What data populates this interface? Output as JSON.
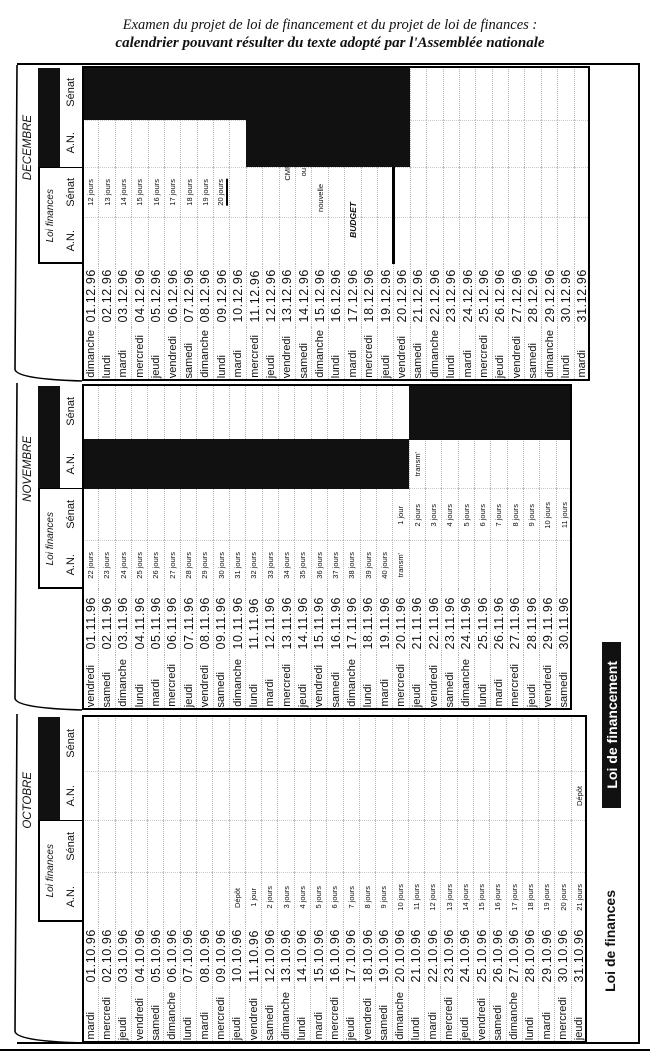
{
  "title": {
    "line1": "Examen du projet de loi de financement et du projet de loi de finances :",
    "line2": "calendrier pouvant résulter du texte adopté par l'Assemblée nationale"
  },
  "column_headers": {
    "loi_finances": "Loi finances",
    "an": "A.N.",
    "senat": "Sénat"
  },
  "legend": {
    "loi_de_finances": "Loi de finances",
    "loi_de_financement": "Loi de financement"
  },
  "colors": {
    "shade": "#111111",
    "grid": "#b8b8b8"
  },
  "months": [
    {
      "name": "OCTOBRE",
      "shaded": [],
      "days": [
        {
          "d": "mardi",
          "dt": "01.10.96"
        },
        {
          "d": "mercredi",
          "dt": "02.10.96"
        },
        {
          "d": "jeudi",
          "dt": "03.10.96"
        },
        {
          "d": "vendredi",
          "dt": "04.10.96"
        },
        {
          "d": "samedi",
          "dt": "05.10.96"
        },
        {
          "d": "dimanche",
          "dt": "06.10.96"
        },
        {
          "d": "lundi",
          "dt": "07.10.96"
        },
        {
          "d": "mardi",
          "dt": "08.10.96"
        },
        {
          "d": "mercredi",
          "dt": "09.10.96"
        },
        {
          "d": "jeudi",
          "dt": "10.10.96",
          "lf_an": "Dépôt"
        },
        {
          "d": "vendredi",
          "dt": "11.10.96",
          "lf_an": "1 jour"
        },
        {
          "d": "samedi",
          "dt": "12.10.96",
          "lf_an": "2 jours"
        },
        {
          "d": "dimanche",
          "dt": "13.10.96",
          "lf_an": "3 jours"
        },
        {
          "d": "lundi",
          "dt": "14.10.96",
          "lf_an": "4 jours"
        },
        {
          "d": "mardi",
          "dt": "15.10.96",
          "lf_an": "5 jours"
        },
        {
          "d": "mercredi",
          "dt": "16.10.96",
          "lf_an": "6 jours"
        },
        {
          "d": "jeudi",
          "dt": "17.10.96",
          "lf_an": "7 jours"
        },
        {
          "d": "vendredi",
          "dt": "18.10.96",
          "lf_an": "8 jours"
        },
        {
          "d": "samedi",
          "dt": "19.10.96",
          "lf_an": "9 jours"
        },
        {
          "d": "dimanche",
          "dt": "20.10.96",
          "lf_an": "10 jours"
        },
        {
          "d": "lundi",
          "dt": "21.10.96",
          "lf_an": "11 jours"
        },
        {
          "d": "mardi",
          "dt": "22.10.96",
          "lf_an": "12 jours"
        },
        {
          "d": "mercredi",
          "dt": "23.10.96",
          "lf_an": "13 jours"
        },
        {
          "d": "jeudi",
          "dt": "24.10.96",
          "lf_an": "14 jours"
        },
        {
          "d": "vendredi",
          "dt": "25.10.96",
          "lf_an": "15 jours"
        },
        {
          "d": "samedi",
          "dt": "26.10.96",
          "lf_an": "16 jours"
        },
        {
          "d": "dimanche",
          "dt": "27.10.96",
          "lf_an": "17 jours"
        },
        {
          "d": "lundi",
          "dt": "28.10.96",
          "lf_an": "18 jours"
        },
        {
          "d": "mardi",
          "dt": "29.10.96",
          "lf_an": "19 jours"
        },
        {
          "d": "mercredi",
          "dt": "30.10.96",
          "lf_an": "20 jours"
        },
        {
          "d": "jeudi",
          "dt": "31.10.96",
          "lf_an": "21 jours",
          "lfss_an": "Dépôt"
        }
      ]
    },
    {
      "name": "NOVEMBRE",
      "shaded": [
        {
          "row": "lfss_an",
          "from_day": 1,
          "to_day": 20
        },
        {
          "row": "lfss_senat",
          "from_day": 21,
          "to_day": 30
        }
      ],
      "days": [
        {
          "d": "vendredi",
          "dt": "01.11.96",
          "lf_an": "22 jours"
        },
        {
          "d": "samedi",
          "dt": "02.11.96",
          "lf_an": "23 jours"
        },
        {
          "d": "dimanche",
          "dt": "03.11.96",
          "lf_an": "24 jours"
        },
        {
          "d": "lundi",
          "dt": "04.11.96",
          "lf_an": "25 jours"
        },
        {
          "d": "mardi",
          "dt": "05.11.96",
          "lf_an": "26 jours"
        },
        {
          "d": "mercredi",
          "dt": "06.11.96",
          "lf_an": "27 jours"
        },
        {
          "d": "jeudi",
          "dt": "07.11.96",
          "lf_an": "28 jours"
        },
        {
          "d": "vendredi",
          "dt": "08.11.96",
          "lf_an": "29 jours"
        },
        {
          "d": "samedi",
          "dt": "09.11.96",
          "lf_an": "30 jours"
        },
        {
          "d": "dimanche",
          "dt": "10.11.96",
          "lf_an": "31 jours"
        },
        {
          "d": "lundi",
          "dt": "11.11.96",
          "lf_an": "32 jours"
        },
        {
          "d": "mardi",
          "dt": "12.11.96",
          "lf_an": "33 jours"
        },
        {
          "d": "mercredi",
          "dt": "13.11.96",
          "lf_an": "34 jours"
        },
        {
          "d": "jeudi",
          "dt": "14.11.96",
          "lf_an": "35 jours"
        },
        {
          "d": "vendredi",
          "dt": "15.11.96",
          "lf_an": "36 jours"
        },
        {
          "d": "samedi",
          "dt": "16.11.96",
          "lf_an": "37 jours"
        },
        {
          "d": "dimanche",
          "dt": "17.11.96",
          "lf_an": "38 jours"
        },
        {
          "d": "lundi",
          "dt": "18.11.96",
          "lf_an": "39 jours"
        },
        {
          "d": "mardi",
          "dt": "19.11.96",
          "lf_an": "40 jours"
        },
        {
          "d": "mercredi",
          "dt": "20.11.96",
          "lf_an": "transm'",
          "lf_senat": "1 jour"
        },
        {
          "d": "jeudi",
          "dt": "21.11.96",
          "lf_senat": "2 jours",
          "lfss_an": "transm'"
        },
        {
          "d": "vendredi",
          "dt": "22.11.96",
          "lf_senat": "3 jours"
        },
        {
          "d": "samedi",
          "dt": "23.11.96",
          "lf_senat": "4 jours"
        },
        {
          "d": "dimanche",
          "dt": "24.11.96",
          "lf_senat": "5 jours"
        },
        {
          "d": "lundi",
          "dt": "25.11.96",
          "lf_senat": "6 jours"
        },
        {
          "d": "mardi",
          "dt": "26.11.96",
          "lf_senat": "7 jours"
        },
        {
          "d": "mercredi",
          "dt": "27.11.96",
          "lf_senat": "8 jours"
        },
        {
          "d": "jeudi",
          "dt": "28.11.96",
          "lf_senat": "9 jours"
        },
        {
          "d": "vendredi",
          "dt": "29.11.96",
          "lf_senat": "10 jours"
        },
        {
          "d": "samedi",
          "dt": "30.11.96",
          "lf_senat": "11 jours"
        }
      ]
    },
    {
      "name": "DECEMBRE",
      "shaded": [
        {
          "row": "lfss_senat",
          "from_day": 1,
          "to_day": 20
        },
        {
          "row": "lfss_an",
          "from_day": 11,
          "to_day": 20
        }
      ],
      "lf_end_marker_after_day": 19,
      "days": [
        {
          "d": "dimanche",
          "dt": "01.12.96",
          "lf_senat": "12 jours"
        },
        {
          "d": "lundi",
          "dt": "02.12.96",
          "lf_senat": "13 jours"
        },
        {
          "d": "mardi",
          "dt": "03.12.96",
          "lf_senat": "14 jours"
        },
        {
          "d": "mercredi",
          "dt": "04.12.96",
          "lf_senat": "15 jours"
        },
        {
          "d": "jeudi",
          "dt": "05.12.96",
          "lf_senat": "16 jours"
        },
        {
          "d": "vendredi",
          "dt": "06.12.96",
          "lf_senat": "17 jours"
        },
        {
          "d": "samedi",
          "dt": "07.12.96",
          "lf_senat": "18 jours"
        },
        {
          "d": "dimanche",
          "dt": "08.12.96",
          "lf_senat": "19 jours"
        },
        {
          "d": "lundi",
          "dt": "09.12.96",
          "lf_senat": "20 jours",
          "underlined": true
        },
        {
          "d": "mardi",
          "dt": "10.12.96"
        },
        {
          "d": "mercredi",
          "dt": "11.12.96"
        },
        {
          "d": "jeudi",
          "dt": "12.12.96"
        },
        {
          "d": "vendredi",
          "dt": "13.12.96",
          "lf_senat": "CMP"
        },
        {
          "d": "samedi",
          "dt": "14.12.96",
          "lf_senat": "ou"
        },
        {
          "d": "dimanche",
          "dt": "15.12.96",
          "lf_senat": "nouvelle"
        },
        {
          "d": "lundi",
          "dt": "16.12.96"
        },
        {
          "d": "mardi",
          "dt": "17.12.96",
          "lf_an": "BUDGET"
        },
        {
          "d": "mercredi",
          "dt": "18.12.96"
        },
        {
          "d": "jeudi",
          "dt": "19.12.96"
        },
        {
          "d": "vendredi",
          "dt": "20.12.96"
        },
        {
          "d": "samedi",
          "dt": "21.12.96"
        },
        {
          "d": "dimanche",
          "dt": "22.12.96"
        },
        {
          "d": "lundi",
          "dt": "23.12.96"
        },
        {
          "d": "mardi",
          "dt": "24.12.96"
        },
        {
          "d": "mercredi",
          "dt": "25.12.96"
        },
        {
          "d": "jeudi",
          "dt": "26.12.96"
        },
        {
          "d": "vendredi",
          "dt": "27.12.96"
        },
        {
          "d": "samedi",
          "dt": "28.12.96"
        },
        {
          "d": "dimanche",
          "dt": "29.12.96"
        },
        {
          "d": "lundi",
          "dt": "30.12.96"
        },
        {
          "d": "mardi",
          "dt": "31.12.96"
        }
      ]
    }
  ]
}
